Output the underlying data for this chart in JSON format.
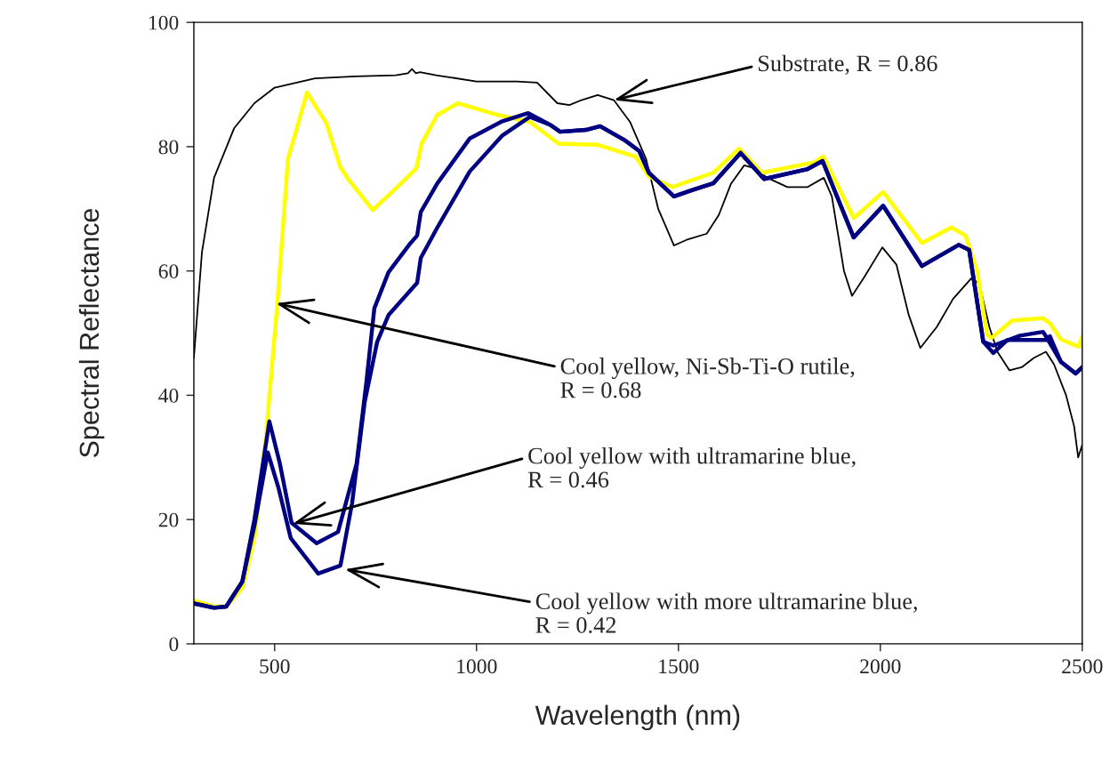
{
  "chart_data": {
    "type": "line",
    "xlabel": "Wavelength (nm)",
    "ylabel": "Spectral Reflectance",
    "xlim": [
      300,
      2500
    ],
    "ylim": [
      0,
      100
    ],
    "xticks": [
      500,
      1000,
      1500,
      2000,
      2500
    ],
    "yticks": [
      0,
      20,
      40,
      60,
      80,
      100
    ],
    "grid": false,
    "legend": false,
    "marker": "none",
    "line_style": "solid",
    "series": [
      {
        "color": "#000000",
        "x": [
          300,
          320,
          350,
          400,
          450,
          500,
          600,
          700,
          800,
          830,
          840,
          850,
          860,
          900,
          1000,
          1100,
          1150,
          1200,
          1230,
          1260,
          1300,
          1340,
          1380,
          1420,
          1450,
          1489,
          1520,
          1570,
          1600,
          1630,
          1663,
          1690,
          1720,
          1770,
          1820,
          1860,
          1880,
          1910,
          1930,
          1960,
          2005,
          2040,
          2070,
          2099,
          2140,
          2180,
          2225,
          2245,
          2270,
          2290,
          2320,
          2350,
          2380,
          2410,
          2430,
          2460,
          2480,
          2490,
          2500
        ],
        "values": [
          46,
          63,
          75,
          83,
          87,
          89.5,
          91,
          91.3,
          91.5,
          91.8,
          92.5,
          91.8,
          92,
          91.5,
          90.5,
          90.5,
          90.3,
          87,
          86.7,
          87.5,
          88.3,
          87.5,
          84,
          78,
          70,
          64.1,
          65,
          66,
          69,
          74,
          77,
          76.5,
          75,
          73.5,
          73.5,
          75,
          72,
          60,
          56,
          59,
          63.8,
          61,
          53,
          47.6,
          51,
          55.5,
          58.8,
          58,
          51,
          47,
          44,
          44.5,
          46,
          47,
          45,
          40,
          35,
          30,
          32
        ]
      },
      {
        "color": "#ffff00",
        "x": [
          300,
          350,
          380,
          420,
          450,
          478,
          507,
          533,
          580,
          628,
          663,
          683,
          743,
          802,
          851,
          864,
          903,
          954,
          1053,
          1132,
          1203,
          1300,
          1394,
          1427,
          1485,
          1586,
          1650,
          1707,
          1837,
          1859,
          1934,
          2007,
          2103,
          2176,
          2211,
          2240,
          2264,
          2275,
          2326,
          2403,
          2421,
          2447,
          2491,
          2500
        ],
        "values": [
          7,
          6,
          6,
          9,
          17,
          33,
          55,
          78,
          88.7,
          83.8,
          76.7,
          74.7,
          69.8,
          73.4,
          76.5,
          80.5,
          85.1,
          87,
          85.1,
          84,
          80.5,
          80.3,
          78.4,
          75.2,
          73.5,
          75.8,
          79.7,
          75.8,
          77.5,
          78.4,
          68.5,
          72.7,
          64.5,
          67,
          65.7,
          60,
          49.8,
          49.2,
          52,
          52.4,
          51.5,
          49,
          47.8,
          49.5
        ]
      },
      {
        "color": "#000080",
        "x": [
          300,
          350,
          380,
          420,
          450,
          487,
          513,
          542,
          604,
          657,
          703,
          727,
          747,
          782,
          833,
          853,
          862,
          903,
          983,
          1064,
          1128,
          1183,
          1207,
          1271,
          1306,
          1368,
          1403,
          1427,
          1489,
          1533,
          1586,
          1654,
          1712,
          1820,
          1857,
          1934,
          2007,
          2103,
          2194,
          2220,
          2255,
          2280,
          2346,
          2403,
          2410,
          2447,
          2484,
          2500
        ],
        "values": [
          6.5,
          5.8,
          6,
          10,
          20,
          35.8,
          29,
          19.5,
          16.2,
          18,
          29,
          42,
          54,
          59.8,
          64.2,
          65.7,
          69.5,
          74.1,
          81.3,
          84.1,
          85.4,
          83.5,
          82.4,
          82.7,
          83.3,
          81,
          79.3,
          75.8,
          72,
          73,
          74.1,
          79,
          74.8,
          76.4,
          77.7,
          65.4,
          70.5,
          60.8,
          64.2,
          63.4,
          48.6,
          48,
          49.6,
          50.2,
          49.5,
          45.4,
          43.5,
          44.5
        ]
      },
      {
        "color": "#000080",
        "x": [
          300,
          350,
          380,
          420,
          450,
          483,
          510,
          540,
          608,
          663,
          692,
          723,
          754,
          782,
          853,
          862,
          903,
          983,
          1064,
          1132,
          1183,
          1207,
          1271,
          1306,
          1368,
          1403,
          1427,
          1489,
          1533,
          1586,
          1654,
          1712,
          1820,
          1857,
          1934,
          2007,
          2103,
          2194,
          2220,
          2255,
          2280,
          2315,
          2412,
          2420,
          2447,
          2484,
          2500
        ],
        "values": [
          6.5,
          5.8,
          6,
          10,
          19,
          30.8,
          25,
          17,
          11.3,
          12.6,
          22.7,
          38.9,
          48.6,
          52.9,
          58.1,
          62.1,
          67,
          76,
          81.8,
          84.8,
          83.5,
          82.4,
          82.7,
          83.3,
          81,
          79.3,
          75.8,
          72,
          73,
          74.1,
          79,
          74.8,
          76.4,
          77.7,
          65.4,
          70.5,
          60.8,
          64.2,
          63.4,
          48.6,
          46.8,
          48.9,
          48.9,
          49.5,
          45.4,
          43.5,
          44.5
        ]
      }
    ],
    "annotations": [
      {
        "text": "Substrate, R = 0.86",
        "x": 1340,
        "y": 87.5
      },
      {
        "text": "Cool yellow, Ni-Sb-Ti-O rutile,\nR = 0.68",
        "x": 503,
        "y": 54.8
      },
      {
        "text": "Cool yellow with ultramarine blue,\nR = 0.46",
        "x": 545,
        "y": 19.3
      },
      {
        "text": "Cool yellow with more ultramarine blue,\nR = 0.42",
        "x": 674,
        "y": 12
      }
    ]
  }
}
